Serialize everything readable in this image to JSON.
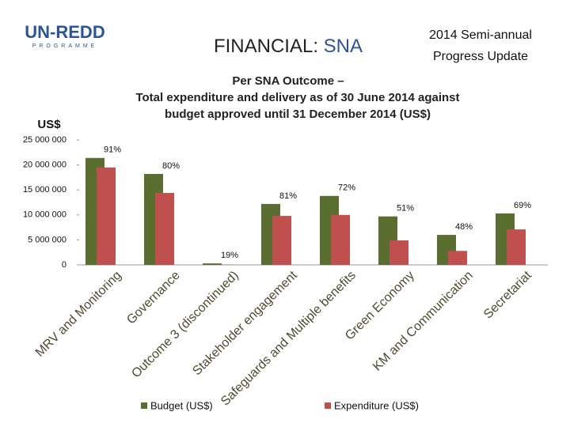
{
  "header": {
    "logo": "UN-REDD",
    "logo_sub": "PROGRAMME",
    "title_prefix": "FINANCIAL:",
    "title_emph": "SNA",
    "report_line1": "2014 Semi-annual",
    "report_line2": "Progress Update"
  },
  "chart_data": {
    "type": "bar",
    "title": [
      "Per SNA Outcome –",
      "Total expenditure and delivery as of 30 June 2014 against",
      "budget approved until 31 December 2014 (US$)"
    ],
    "y_label": "US$",
    "categories": [
      "MRV and Monitoring",
      "Governance",
      "Outcome 3 (discontinued)",
      "Stakeholder engagement",
      "Safeguards and Multiple benefits",
      "Green Economy",
      "KM and Communication",
      "Secretariat"
    ],
    "series": [
      {
        "name": "Budget (US$)",
        "color": "#5a6e2f",
        "values": [
          21400000,
          18200000,
          300000,
          12200000,
          13800000,
          9700000,
          6000000,
          10300000
        ]
      },
      {
        "name": "Expenditure (US$)",
        "color": "#c0504d",
        "values": [
          19500000,
          14400000,
          60000,
          9800000,
          10000000,
          4900000,
          2800000,
          7100000
        ]
      }
    ],
    "delivery_labels": [
      "91%",
      "80%",
      "19%",
      "81%",
      "72%",
      "51%",
      "48%",
      "69%"
    ],
    "ylim": [
      0,
      25000000
    ],
    "yticks": [
      {
        "value": 0,
        "label": "0"
      },
      {
        "value": 5000000,
        "label": "5 000 000"
      },
      {
        "value": 10000000,
        "label": "10 000 000"
      },
      {
        "value": 15000000,
        "label": "15 000 000"
      },
      {
        "value": 20000000,
        "label": "20 000 000"
      },
      {
        "value": 25000000,
        "label": "25 000 000"
      }
    ],
    "grid": false
  }
}
